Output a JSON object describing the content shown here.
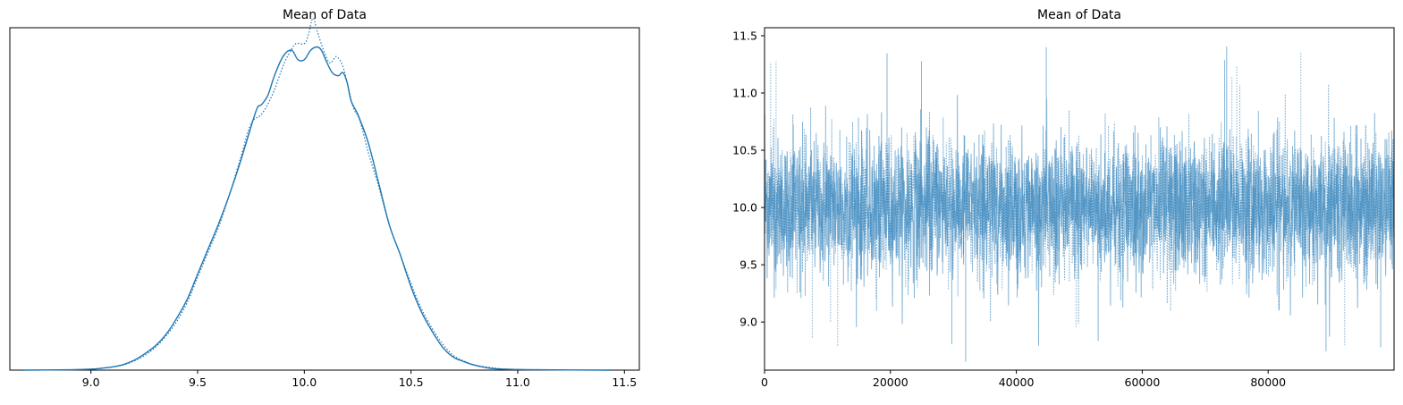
{
  "chart_data": [
    {
      "type": "line",
      "title": "Mean of Data",
      "xlabel": "",
      "ylabel": "",
      "xlim": [
        8.62,
        11.57
      ],
      "ylim": [
        0,
        1.07
      ],
      "xticks": [
        9.0,
        9.5,
        10.0,
        10.5,
        11.0,
        11.5
      ],
      "xtick_labels": [
        "9.0",
        "9.5",
        "10.0",
        "10.5",
        "11.0",
        "11.5"
      ],
      "yticks_visible": false,
      "grid": false,
      "color": "#1f77b4",
      "series": [
        {
          "line_style": "solid",
          "x": [
            8.68,
            8.9,
            9.0,
            9.05,
            9.1,
            9.15,
            9.2,
            9.25,
            9.3,
            9.35,
            9.4,
            9.45,
            9.5,
            9.55,
            9.6,
            9.65,
            9.7,
            9.75,
            9.78,
            9.8,
            9.83,
            9.86,
            9.9,
            9.94,
            9.97,
            10.0,
            10.03,
            10.06,
            10.08,
            10.1,
            10.13,
            10.16,
            10.18,
            10.2,
            10.22,
            10.25,
            10.3,
            10.35,
            10.4,
            10.45,
            10.5,
            10.55,
            10.6,
            10.65,
            10.7,
            10.75,
            10.8,
            10.85,
            10.9,
            11.0,
            11.1,
            11.43
          ],
          "y": [
            0.0,
            0.001,
            0.003,
            0.006,
            0.01,
            0.017,
            0.03,
            0.05,
            0.075,
            0.11,
            0.16,
            0.22,
            0.3,
            0.38,
            0.46,
            0.55,
            0.65,
            0.76,
            0.82,
            0.83,
            0.86,
            0.92,
            0.98,
            1.0,
            0.97,
            0.97,
            1.0,
            1.01,
            1.0,
            0.97,
            0.93,
            0.92,
            0.93,
            0.9,
            0.84,
            0.8,
            0.71,
            0.58,
            0.45,
            0.36,
            0.26,
            0.18,
            0.12,
            0.07,
            0.04,
            0.026,
            0.015,
            0.008,
            0.004,
            0.002,
            0.001,
            0.0
          ]
        },
        {
          "line_style": "dotted",
          "x": [
            8.68,
            8.9,
            9.0,
            9.05,
            9.1,
            9.15,
            9.2,
            9.25,
            9.3,
            9.35,
            9.4,
            9.45,
            9.5,
            9.55,
            9.6,
            9.65,
            9.7,
            9.75,
            9.8,
            9.85,
            9.9,
            9.93,
            9.96,
            10.0,
            10.02,
            10.04,
            10.06,
            10.09,
            10.12,
            10.15,
            10.18,
            10.2,
            10.23,
            10.26,
            10.3,
            10.35,
            10.4,
            10.45,
            10.5,
            10.55,
            10.6,
            10.65,
            10.7,
            10.75,
            10.8,
            10.9,
            11.0,
            11.43
          ],
          "y": [
            0.0,
            0.001,
            0.003,
            0.006,
            0.01,
            0.016,
            0.028,
            0.045,
            0.07,
            0.105,
            0.15,
            0.21,
            0.29,
            0.37,
            0.45,
            0.55,
            0.66,
            0.77,
            0.8,
            0.86,
            0.95,
            0.99,
            1.02,
            1.02,
            1.05,
            1.1,
            1.06,
            1.0,
            0.96,
            0.98,
            0.95,
            0.9,
            0.82,
            0.78,
            0.68,
            0.57,
            0.45,
            0.36,
            0.27,
            0.19,
            0.13,
            0.08,
            0.045,
            0.028,
            0.016,
            0.006,
            0.002,
            0.0
          ]
        }
      ]
    },
    {
      "type": "line",
      "title": "Mean of Data",
      "xlabel": "",
      "ylabel": "",
      "xlim": [
        0,
        100000
      ],
      "ylim": [
        8.58,
        11.57
      ],
      "xticks": [
        0,
        20000,
        40000,
        60000,
        80000
      ],
      "xtick_labels": [
        "0",
        "20000",
        "40000",
        "60000",
        "80000"
      ],
      "yticks": [
        9.0,
        9.5,
        10.0,
        10.5,
        11.0,
        11.5
      ],
      "ytick_labels": [
        "9.0",
        "9.5",
        "10.0",
        "10.5",
        "11.0",
        "11.5"
      ],
      "grid": false,
      "color": "#1f77b4",
      "alpha": 0.55,
      "n_draws": 100000,
      "series": [
        {
          "line_style": "solid",
          "mean": 10.0,
          "sd": 0.3,
          "min": 8.64,
          "max": 11.44
        },
        {
          "line_style": "dotted",
          "mean": 10.0,
          "sd": 0.3,
          "min": 8.74,
          "max": 11.4
        }
      ]
    }
  ]
}
